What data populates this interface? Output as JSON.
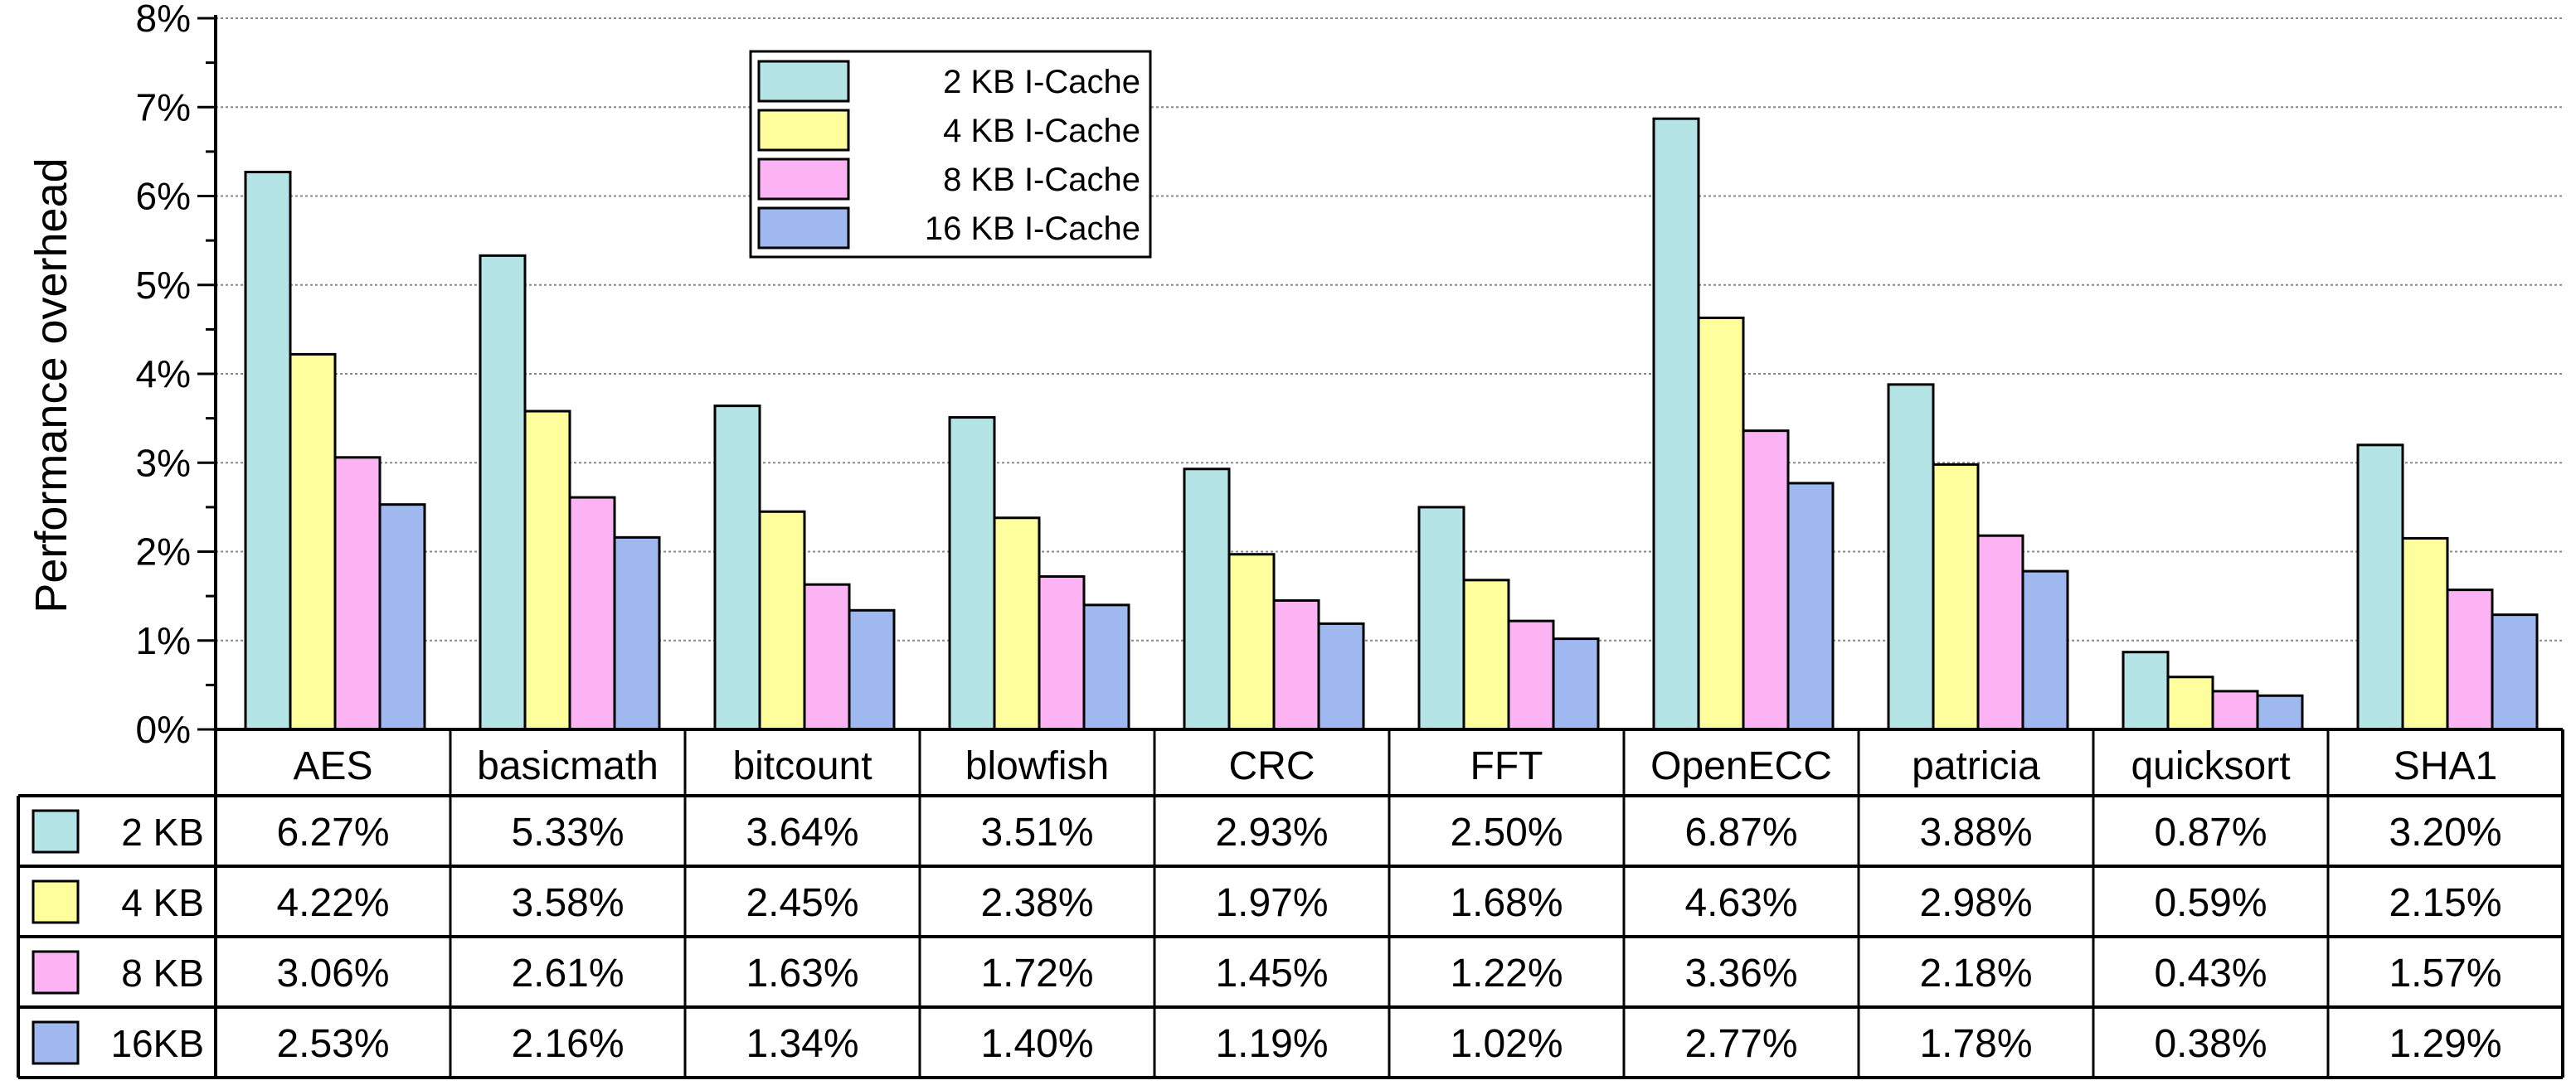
{
  "chart_data": {
    "type": "bar",
    "ylabel": "Performance overhead",
    "ylim": [
      0,
      8
    ],
    "yticks": [
      "0%",
      "1%",
      "2%",
      "3%",
      "4%",
      "5%",
      "6%",
      "7%",
      "8%"
    ],
    "grid": true,
    "legend_position": "top-left",
    "categories": [
      "AES",
      "basicmath",
      "bitcount",
      "blowfish",
      "CRC",
      "FFT",
      "OpenECC",
      "patricia",
      "quicksort",
      "SHA1"
    ],
    "series": [
      {
        "name": "2 KB I-Cache",
        "table_label": "2 KB",
        "color": "#b4e4e6",
        "values": [
          6.27,
          5.33,
          3.64,
          3.51,
          2.93,
          2.5,
          6.87,
          3.88,
          0.87,
          3.2
        ],
        "labels": [
          "6.27%",
          "5.33%",
          "3.64%",
          "3.51%",
          "2.93%",
          "2.50%",
          "6.87%",
          "3.88%",
          "0.87%",
          "3.20%"
        ]
      },
      {
        "name": "4 KB I-Cache",
        "table_label": "4 KB",
        "color": "#fefe9c",
        "values": [
          4.22,
          3.58,
          2.45,
          2.38,
          1.97,
          1.68,
          4.63,
          2.98,
          0.59,
          2.15
        ],
        "labels": [
          "4.22%",
          "3.58%",
          "2.45%",
          "2.38%",
          "1.97%",
          "1.68%",
          "4.63%",
          "2.98%",
          "0.59%",
          "2.15%"
        ]
      },
      {
        "name": "8 KB I-Cache",
        "table_label": "8 KB",
        "color": "#fcb3f4",
        "values": [
          3.06,
          2.61,
          1.63,
          1.72,
          1.45,
          1.22,
          3.36,
          2.18,
          0.43,
          1.57
        ],
        "labels": [
          "3.06%",
          "2.61%",
          "1.63%",
          "1.72%",
          "1.45%",
          "1.22%",
          "3.36%",
          "2.18%",
          "0.43%",
          "1.57%"
        ]
      },
      {
        "name": "16 KB I-Cache",
        "table_label": "16KB",
        "color": "#9fb9f0",
        "values": [
          2.53,
          2.16,
          1.34,
          1.4,
          1.19,
          1.02,
          2.77,
          1.78,
          0.38,
          1.29
        ],
        "labels": [
          "2.53%",
          "2.16%",
          "1.34%",
          "1.40%",
          "1.19%",
          "1.02%",
          "2.77%",
          "1.78%",
          "0.38%",
          "1.29%"
        ]
      }
    ]
  }
}
